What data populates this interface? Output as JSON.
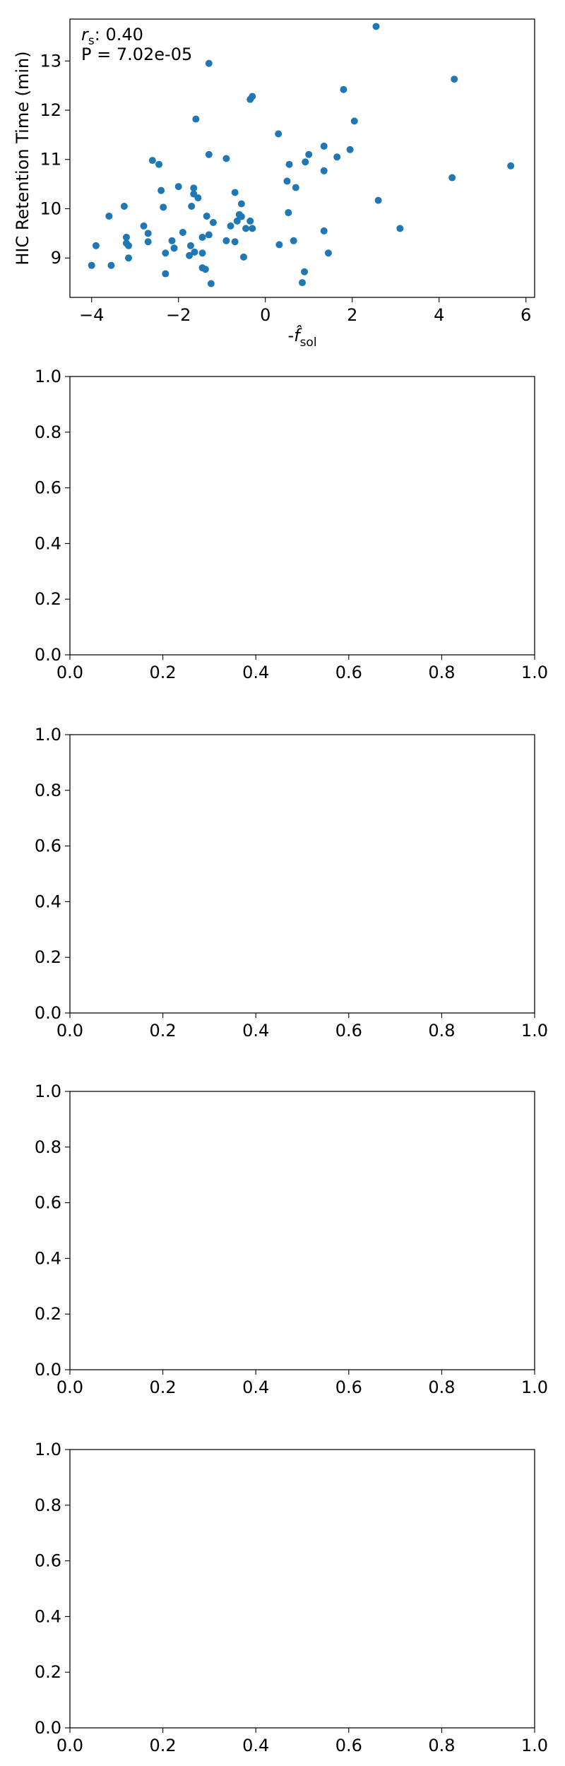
{
  "chart_data": [
    {
      "type": "scatter",
      "xlabel": "-f̂sol",
      "xlabel_parts": {
        "prefix": "-",
        "symbol": "f̂",
        "subscript": "sol"
      },
      "ylabel": "HIC Retention Time (min)",
      "annotation": {
        "rs_symbol": "r",
        "rs_subscript": "s",
        "rs_text": ": 0.40",
        "p_text": "P = 7.02e-05"
      },
      "xlim": [
        -4.5,
        6.2
      ],
      "ylim": [
        8.2,
        13.85
      ],
      "xticks": [
        -4,
        -2,
        0,
        2,
        4,
        6
      ],
      "xtick_labels": [
        "−4",
        "−2",
        "0",
        "2",
        "4",
        "6"
      ],
      "yticks": [
        9,
        10,
        11,
        12,
        13
      ],
      "ytick_labels": [
        "9",
        "10",
        "11",
        "12",
        "13"
      ],
      "marker_color": "#1f77b4",
      "points": [
        {
          "x": -4.0,
          "y": 8.85
        },
        {
          "x": -3.9,
          "y": 9.25
        },
        {
          "x": -3.6,
          "y": 9.85
        },
        {
          "x": -3.55,
          "y": 8.85
        },
        {
          "x": -3.25,
          "y": 10.05
        },
        {
          "x": -3.2,
          "y": 9.42
        },
        {
          "x": -3.2,
          "y": 9.3
        },
        {
          "x": -3.15,
          "y": 9.0
        },
        {
          "x": -3.15,
          "y": 9.25
        },
        {
          "x": -2.8,
          "y": 9.65
        },
        {
          "x": -2.7,
          "y": 9.5
        },
        {
          "x": -2.7,
          "y": 9.33
        },
        {
          "x": -2.6,
          "y": 10.98
        },
        {
          "x": -2.45,
          "y": 10.9
        },
        {
          "x": -2.4,
          "y": 10.37
        },
        {
          "x": -2.35,
          "y": 10.03
        },
        {
          "x": -2.3,
          "y": 8.68
        },
        {
          "x": -2.3,
          "y": 9.1
        },
        {
          "x": -2.15,
          "y": 9.35
        },
        {
          "x": -2.1,
          "y": 9.2
        },
        {
          "x": -2.1,
          "y": 9.2
        },
        {
          "x": -2.0,
          "y": 10.45
        },
        {
          "x": -1.9,
          "y": 9.52
        },
        {
          "x": -1.75,
          "y": 9.05
        },
        {
          "x": -1.72,
          "y": 9.25
        },
        {
          "x": -1.7,
          "y": 10.05
        },
        {
          "x": -1.65,
          "y": 10.42
        },
        {
          "x": -1.65,
          "y": 10.3
        },
        {
          "x": -1.63,
          "y": 9.12
        },
        {
          "x": -1.6,
          "y": 11.82
        },
        {
          "x": -1.55,
          "y": 10.22
        },
        {
          "x": -1.45,
          "y": 9.42
        },
        {
          "x": -1.45,
          "y": 9.1
        },
        {
          "x": -1.45,
          "y": 8.8
        },
        {
          "x": -1.38,
          "y": 8.77
        },
        {
          "x": -1.35,
          "y": 9.85
        },
        {
          "x": -1.3,
          "y": 9.47
        },
        {
          "x": -1.3,
          "y": 11.1
        },
        {
          "x": -1.3,
          "y": 12.95
        },
        {
          "x": -1.25,
          "y": 8.48
        },
        {
          "x": -1.2,
          "y": 9.72
        },
        {
          "x": -0.9,
          "y": 11.02
        },
        {
          "x": -0.9,
          "y": 9.35
        },
        {
          "x": -0.8,
          "y": 9.65
        },
        {
          "x": -0.7,
          "y": 10.33
        },
        {
          "x": -0.7,
          "y": 9.33
        },
        {
          "x": -0.65,
          "y": 9.75
        },
        {
          "x": -0.6,
          "y": 9.88
        },
        {
          "x": -0.55,
          "y": 10.1
        },
        {
          "x": -0.55,
          "y": 9.84
        },
        {
          "x": -0.5,
          "y": 9.02
        },
        {
          "x": -0.45,
          "y": 9.6
        },
        {
          "x": -0.35,
          "y": 9.75
        },
        {
          "x": -0.35,
          "y": 12.22
        },
        {
          "x": -0.3,
          "y": 12.28
        },
        {
          "x": -0.3,
          "y": 9.6
        },
        {
          "x": 0.3,
          "y": 11.52
        },
        {
          "x": 0.32,
          "y": 9.27
        },
        {
          "x": 0.5,
          "y": 10.56
        },
        {
          "x": 0.53,
          "y": 9.92
        },
        {
          "x": 0.55,
          "y": 10.9
        },
        {
          "x": 0.65,
          "y": 9.35
        },
        {
          "x": 0.7,
          "y": 10.43
        },
        {
          "x": 0.85,
          "y": 8.5
        },
        {
          "x": 0.9,
          "y": 8.72
        },
        {
          "x": 0.92,
          "y": 10.95
        },
        {
          "x": 1.0,
          "y": 11.1
        },
        {
          "x": 1.35,
          "y": 11.27
        },
        {
          "x": 1.35,
          "y": 10.77
        },
        {
          "x": 1.35,
          "y": 9.55
        },
        {
          "x": 1.45,
          "y": 9.1
        },
        {
          "x": 1.65,
          "y": 11.05
        },
        {
          "x": 1.8,
          "y": 12.42
        },
        {
          "x": 1.95,
          "y": 11.2
        },
        {
          "x": 2.05,
          "y": 11.78
        },
        {
          "x": 2.55,
          "y": 13.7
        },
        {
          "x": 2.6,
          "y": 10.17
        },
        {
          "x": 3.1,
          "y": 9.6
        },
        {
          "x": 4.3,
          "y": 10.63
        },
        {
          "x": 4.35,
          "y": 12.63
        },
        {
          "x": 5.65,
          "y": 10.87
        }
      ]
    },
    {
      "type": "scatter",
      "xlim": [
        0,
        1
      ],
      "ylim": [
        0,
        1
      ],
      "xticks": [
        0,
        0.2,
        0.4,
        0.6,
        0.8,
        1.0
      ],
      "xtick_labels": [
        "0.0",
        "0.2",
        "0.4",
        "0.6",
        "0.8",
        "1.0"
      ],
      "yticks": [
        0,
        0.2,
        0.4,
        0.6,
        0.8,
        1.0
      ],
      "ytick_labels": [
        "0.0",
        "0.2",
        "0.4",
        "0.6",
        "0.8",
        "1.0"
      ],
      "points": []
    },
    {
      "type": "scatter",
      "xlim": [
        0,
        1
      ],
      "ylim": [
        0,
        1
      ],
      "xticks": [
        0,
        0.2,
        0.4,
        0.6,
        0.8,
        1.0
      ],
      "xtick_labels": [
        "0.0",
        "0.2",
        "0.4",
        "0.6",
        "0.8",
        "1.0"
      ],
      "yticks": [
        0,
        0.2,
        0.4,
        0.6,
        0.8,
        1.0
      ],
      "ytick_labels": [
        "0.0",
        "0.2",
        "0.4",
        "0.6",
        "0.8",
        "1.0"
      ],
      "points": []
    },
    {
      "type": "scatter",
      "xlim": [
        0,
        1
      ],
      "ylim": [
        0,
        1
      ],
      "xticks": [
        0,
        0.2,
        0.4,
        0.6,
        0.8,
        1.0
      ],
      "xtick_labels": [
        "0.0",
        "0.2",
        "0.4",
        "0.6",
        "0.8",
        "1.0"
      ],
      "yticks": [
        0,
        0.2,
        0.4,
        0.6,
        0.8,
        1.0
      ],
      "ytick_labels": [
        "0.0",
        "0.2",
        "0.4",
        "0.6",
        "0.8",
        "1.0"
      ],
      "points": []
    },
    {
      "type": "scatter",
      "xlim": [
        0,
        1
      ],
      "ylim": [
        0,
        1
      ],
      "xticks": [
        0,
        0.2,
        0.4,
        0.6,
        0.8,
        1.0
      ],
      "xtick_labels": [
        "0.0",
        "0.2",
        "0.4",
        "0.6",
        "0.8",
        "1.0"
      ],
      "yticks": [
        0,
        0.2,
        0.4,
        0.6,
        0.8,
        1.0
      ],
      "ytick_labels": [
        "0.0",
        "0.2",
        "0.4",
        "0.6",
        "0.8",
        "1.0"
      ],
      "points": []
    }
  ]
}
